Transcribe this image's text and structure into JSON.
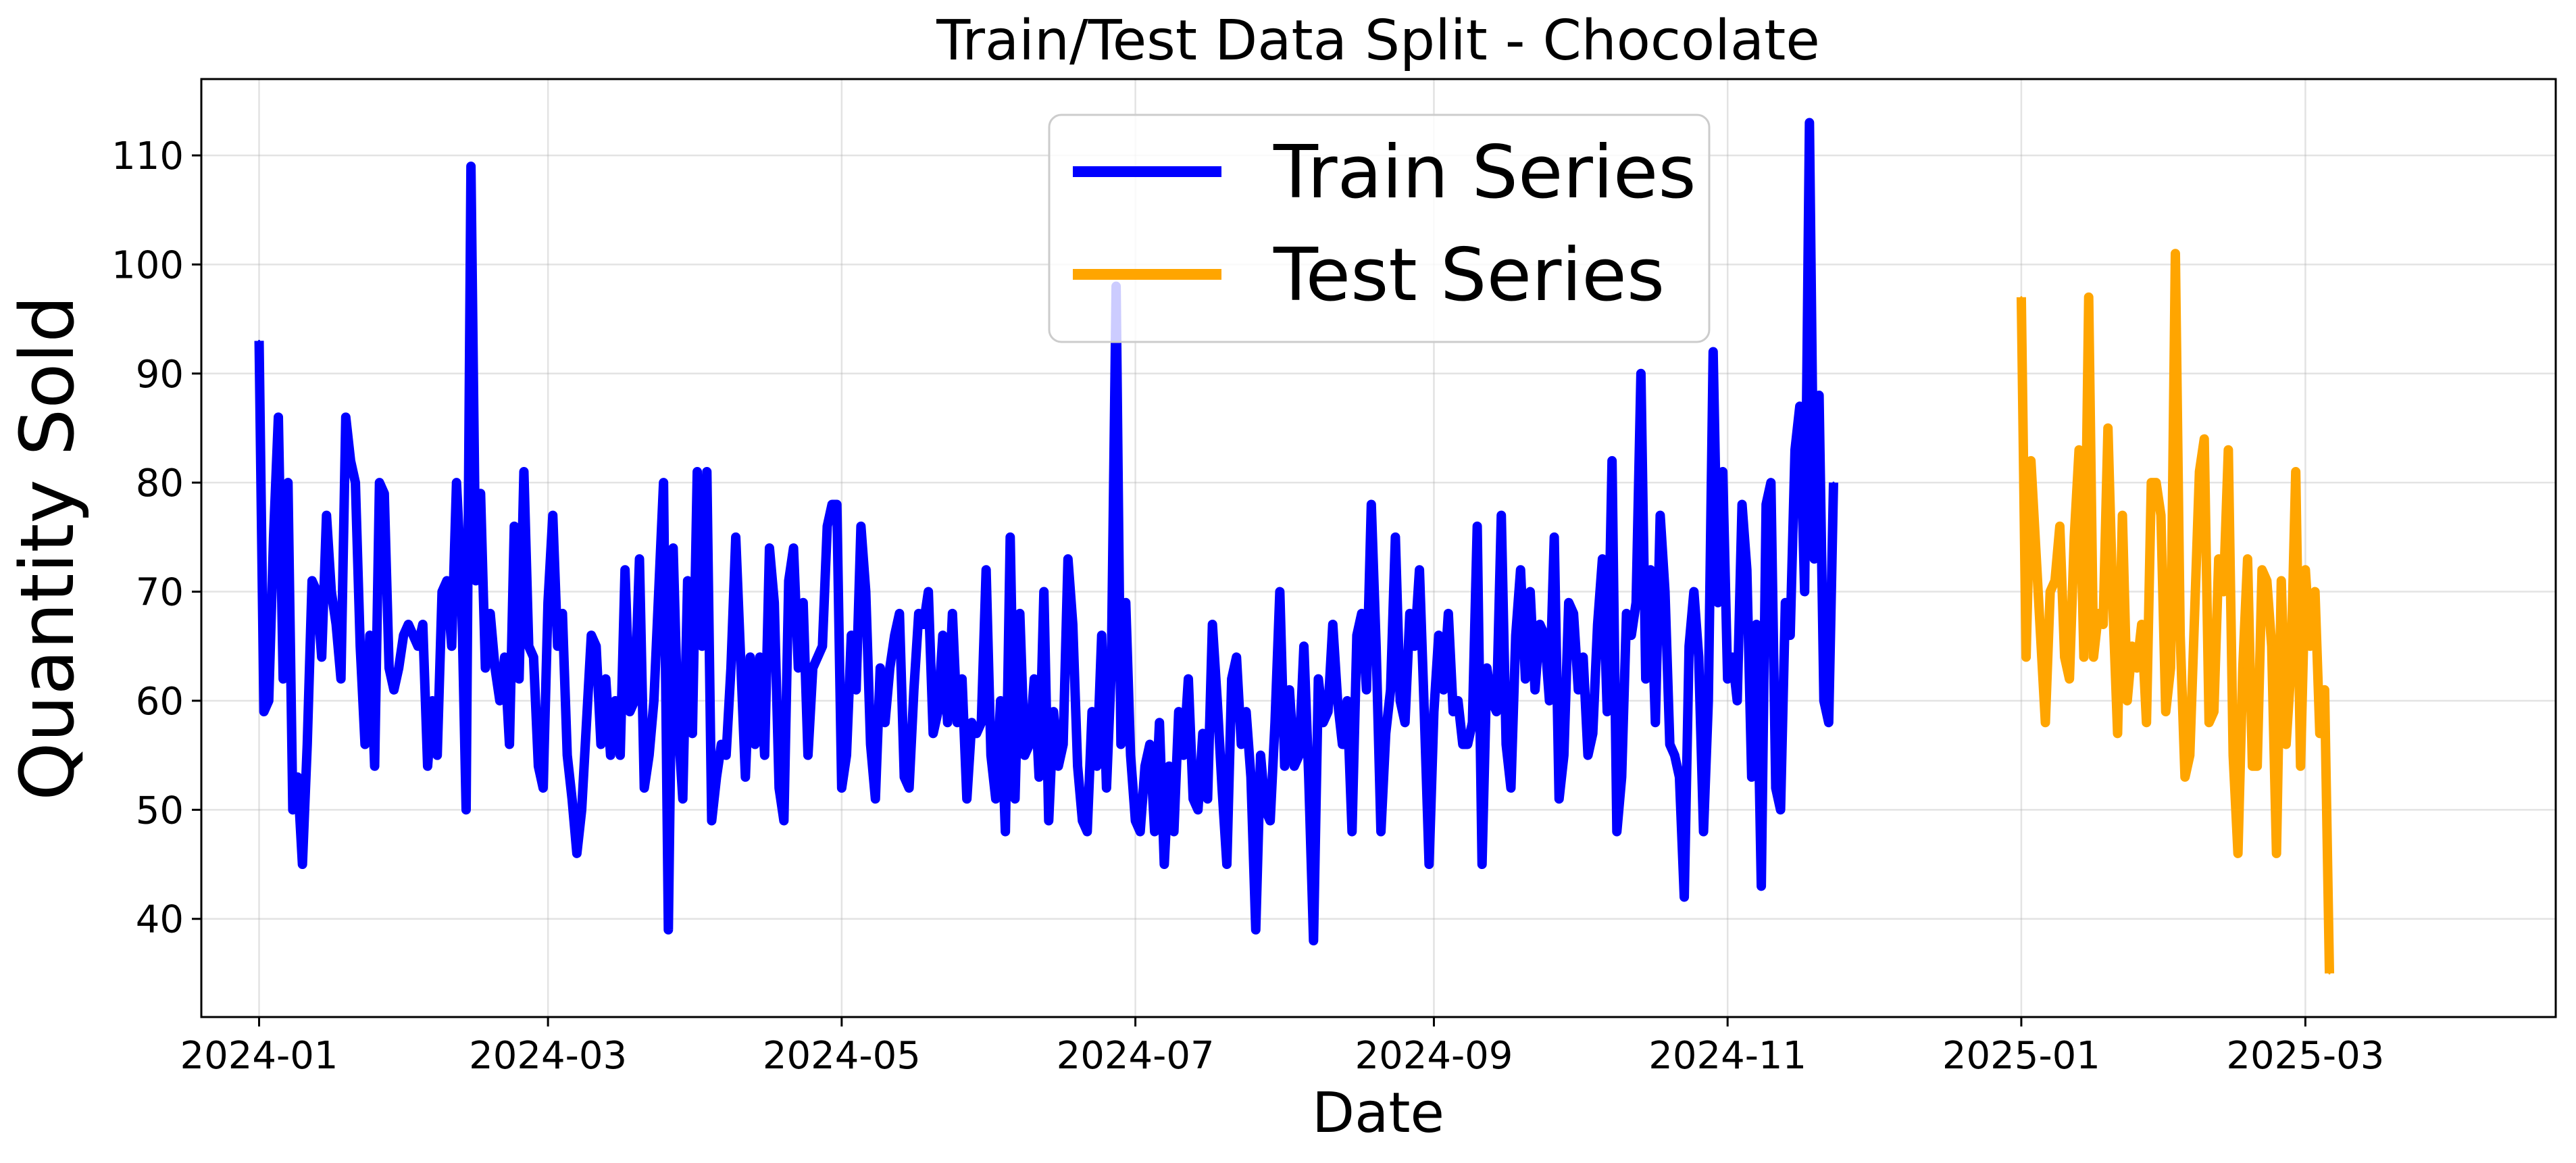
{
  "chart_data": {
    "type": "line",
    "title": "Train/Test Data Split - Chocolate",
    "xlabel": "Date",
    "ylabel": "Quantity Sold",
    "x_ticks": [
      "2024-01",
      "2024-03",
      "2024-05",
      "2024-07",
      "2024-09",
      "2024-11",
      "2025-01",
      "2025-03"
    ],
    "y_ticks": [
      40,
      50,
      60,
      70,
      80,
      90,
      100,
      110
    ],
    "xlim": [
      "2023-12-20",
      "2025-04-22"
    ],
    "ylim": [
      31,
      117
    ],
    "grid": true,
    "legend_position": "top-center",
    "series": [
      {
        "name": "Train Series",
        "color": "#0000ff",
        "start_date": "2024-01-01",
        "step": "1 day",
        "values": [
          93,
          59,
          60,
          75,
          86,
          62,
          80,
          50,
          53,
          45,
          56,
          71,
          70,
          64,
          77,
          70,
          67,
          62,
          86,
          82,
          80,
          65,
          56,
          66,
          54,
          80,
          79,
          63,
          61,
          63,
          66,
          67,
          66,
          65,
          67,
          54,
          60,
          55,
          70,
          71,
          65,
          80,
          71,
          50,
          109,
          71,
          79,
          63,
          68,
          63,
          60,
          64,
          56,
          76,
          62,
          81,
          65,
          64,
          54,
          52,
          69,
          77,
          65,
          68,
          55,
          51,
          46,
          50,
          58,
          66,
          65,
          56,
          62,
          55,
          60,
          55,
          72,
          59,
          60,
          73,
          52,
          55,
          60,
          70,
          80,
          39,
          74,
          58,
          51,
          71,
          57,
          81,
          65,
          81,
          49,
          53,
          56,
          55,
          63,
          75,
          64,
          53,
          64,
          56,
          64,
          55,
          74,
          69,
          52,
          49,
          71,
          74,
          63,
          69,
          55,
          63,
          64,
          65,
          76,
          78,
          78,
          52,
          55,
          66,
          61,
          76,
          70,
          56,
          51,
          63,
          58,
          63,
          66,
          68,
          53,
          52,
          61,
          68,
          67,
          70,
          57,
          59,
          66,
          58,
          68,
          58,
          62,
          51,
          58,
          57,
          58,
          72,
          55,
          51,
          60,
          48,
          75,
          51,
          68,
          55,
          56,
          62,
          53,
          70,
          49,
          59,
          54,
          56,
          73,
          67,
          54,
          49,
          48,
          59,
          54,
          66,
          52,
          63,
          98,
          56,
          69,
          55,
          49,
          48,
          54,
          56,
          48,
          58,
          45,
          54,
          48,
          59,
          55,
          62,
          51,
          50,
          57,
          51,
          67,
          60,
          52,
          45,
          62,
          64,
          56,
          59,
          53,
          39,
          55,
          50,
          49,
          58,
          70,
          54,
          61,
          54,
          55,
          65,
          53,
          38,
          62,
          58,
          59,
          67,
          60,
          56,
          60,
          48,
          66,
          68,
          61,
          78,
          65,
          48,
          57,
          61,
          75,
          60,
          58,
          68,
          65,
          72,
          59,
          45,
          59,
          66,
          61,
          68,
          59,
          60,
          56,
          56,
          58,
          76,
          45,
          63,
          60,
          59,
          77,
          56,
          52,
          66,
          72,
          62,
          70,
          61,
          67,
          66,
          60,
          75,
          51,
          55,
          69,
          68,
          61,
          64,
          55,
          57,
          67,
          73,
          59,
          82,
          48,
          53,
          68,
          66,
          69,
          90,
          62,
          72,
          58,
          77,
          70,
          56,
          55,
          53,
          42,
          65,
          70,
          64,
          48,
          60,
          92,
          69,
          81,
          62,
          64,
          60,
          78,
          72,
          53,
          67,
          43,
          78,
          80,
          52,
          50,
          69,
          66,
          83,
          87,
          70,
          113,
          73,
          88,
          60,
          58,
          80
        ]
      },
      {
        "name": "Test Series",
        "color": "#ffa500",
        "start_date": "2025-01-01",
        "step": "1 day",
        "values": [
          97,
          64,
          82,
          74,
          66,
          58,
          70,
          71,
          76,
          64,
          62,
          75,
          83,
          64,
          97,
          64,
          68,
          67,
          85,
          69,
          57,
          77,
          60,
          65,
          63,
          67,
          58,
          80,
          80,
          77,
          59,
          63,
          101,
          66,
          53,
          55,
          68,
          81,
          84,
          58,
          59,
          73,
          70,
          83,
          55,
          46,
          63,
          73,
          54,
          54,
          72,
          71,
          65,
          46,
          71,
          56,
          63,
          81,
          54,
          72,
          65,
          70,
          57,
          61,
          35
        ]
      }
    ]
  }
}
